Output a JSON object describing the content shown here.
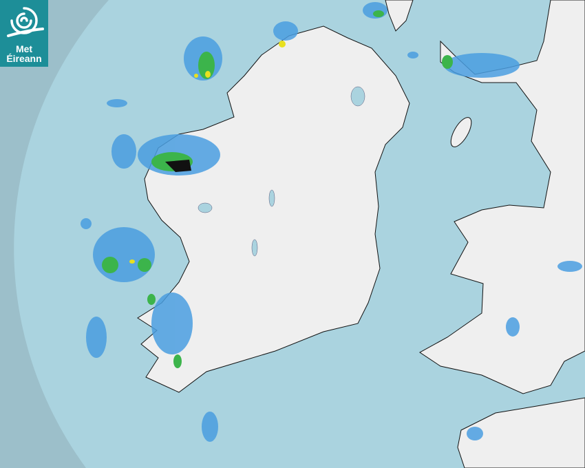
{
  "logo": {
    "line1": "Met",
    "line2": "Éireann"
  },
  "colors": {
    "sea_outside_radar": "#9cbfca",
    "sea_radar_coverage": "#aad3df",
    "land": "#eeeeee",
    "rain_light": "#4a9ee0",
    "rain_moderate": "#3cb44b",
    "rain_heavy": "#e8e020"
  },
  "icons": [
    "met-eireann-swirl-logo"
  ]
}
